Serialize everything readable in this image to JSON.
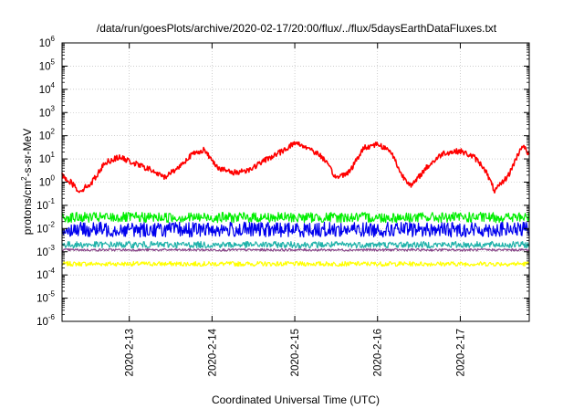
{
  "chart_data": {
    "type": "line",
    "title": "/data/run/goesPlots/archive/2020-02-17/20:00/flux/../flux/5daysEarthDataFluxes.txt",
    "xlabel": "Coordinated Universal Time (UTC)",
    "ylabel": {
      "base": "protons/cm",
      "sup": "2",
      "rest": "-s-sr-MeV"
    },
    "yscale": "log",
    "ylim": [
      1e-06,
      1000000.0
    ],
    "y_ticks": [
      {
        "exp": "-6"
      },
      {
        "exp": "-5"
      },
      {
        "exp": "-4"
      },
      {
        "exp": "-3"
      },
      {
        "exp": "-2"
      },
      {
        "exp": "-1"
      },
      {
        "exp": "0"
      },
      {
        "exp": "1"
      },
      {
        "exp": "2"
      },
      {
        "exp": "3"
      },
      {
        "exp": "4"
      },
      {
        "exp": "5"
      },
      {
        "exp": "6"
      }
    ],
    "y_tick_base": "10",
    "xlim": [
      "2020-02-12T04:30",
      "2020-02-17T20:00"
    ],
    "x_ticks": [
      "2020-2-13",
      "2020-2-14",
      "2020-2-15",
      "2020-2-16",
      "2020-2-17"
    ],
    "grid": true,
    "series": [
      {
        "color": "#ff0000",
        "x": [
          "2020-02-12T04:30",
          "2020-02-12T07:00",
          "2020-02-12T09:30",
          "2020-02-12T13:00",
          "2020-02-12T17:00",
          "2020-02-12T21:00",
          "2020-02-13T02:00",
          "2020-02-13T06:00",
          "2020-02-13T10:00",
          "2020-02-13T14:00",
          "2020-02-13T18:00",
          "2020-02-13T21:30",
          "2020-02-14T02:00",
          "2020-02-14T06:00",
          "2020-02-14T11:00",
          "2020-02-14T16:00",
          "2020-02-14T20:00",
          "2020-02-15T00:00",
          "2020-02-15T04:00",
          "2020-02-15T08:00",
          "2020-02-15T12:00",
          "2020-02-15T16:00",
          "2020-02-15T20:00",
          "2020-02-16T00:00",
          "2020-02-16T04:00",
          "2020-02-16T07:00",
          "2020-02-16T10:00",
          "2020-02-16T14:00",
          "2020-02-16T19:00",
          "2020-02-17T00:00",
          "2020-02-17T04:00",
          "2020-02-17T07:00",
          "2020-02-17T10:00",
          "2020-02-17T14:00",
          "2020-02-17T18:00",
          "2020-02-17T20:00"
        ],
        "values": [
          2.0,
          1.0,
          0.4,
          0.9,
          7.0,
          12.0,
          6.0,
          3.5,
          1.6,
          4.0,
          15.0,
          25.0,
          4.0,
          2.5,
          3.5,
          10.0,
          20.0,
          50.0,
          30.0,
          12.0,
          1.5,
          3.0,
          30.0,
          45.0,
          20.0,
          2.0,
          0.7,
          4.0,
          18.0,
          22.0,
          12.0,
          4.0,
          0.4,
          2.0,
          40.0,
          15.0
        ]
      },
      {
        "color": "#00ee00",
        "x": [
          "2020-02-12T04:30",
          "2020-02-13T12:00",
          "2020-02-14T12:00",
          "2020-02-15T12:00",
          "2020-02-16T12:00",
          "2020-02-17T20:00"
        ],
        "values": [
          0.03,
          0.03,
          0.03,
          0.03,
          0.03,
          0.03
        ]
      },
      {
        "color": "#0000ee",
        "x": [
          "2020-02-12T04:30",
          "2020-02-13T12:00",
          "2020-02-14T12:00",
          "2020-02-15T12:00",
          "2020-02-16T12:00",
          "2020-02-17T20:00"
        ],
        "values": [
          0.009,
          0.009,
          0.009,
          0.009,
          0.009,
          0.009
        ]
      },
      {
        "color": "#20b2aa",
        "x": [
          "2020-02-12T04:30",
          "2020-02-13T12:00",
          "2020-02-14T12:00",
          "2020-02-15T12:00",
          "2020-02-16T12:00",
          "2020-02-17T20:00"
        ],
        "values": [
          0.002,
          0.002,
          0.002,
          0.002,
          0.002,
          0.002
        ]
      },
      {
        "color": "#884488",
        "x": [
          "2020-02-12T04:30",
          "2020-02-13T12:00",
          "2020-02-14T12:00",
          "2020-02-15T12:00",
          "2020-02-16T12:00",
          "2020-02-17T20:00"
        ],
        "values": [
          0.0012,
          0.0012,
          0.0012,
          0.0012,
          0.0012,
          0.0012
        ]
      },
      {
        "color": "#ffff00",
        "x": [
          "2020-02-12T04:30",
          "2020-02-13T12:00",
          "2020-02-14T12:00",
          "2020-02-15T12:00",
          "2020-02-16T12:00",
          "2020-02-17T20:00"
        ],
        "values": [
          0.0003,
          0.0003,
          0.0003,
          0.0003,
          0.0003,
          0.0003
        ]
      }
    ]
  }
}
